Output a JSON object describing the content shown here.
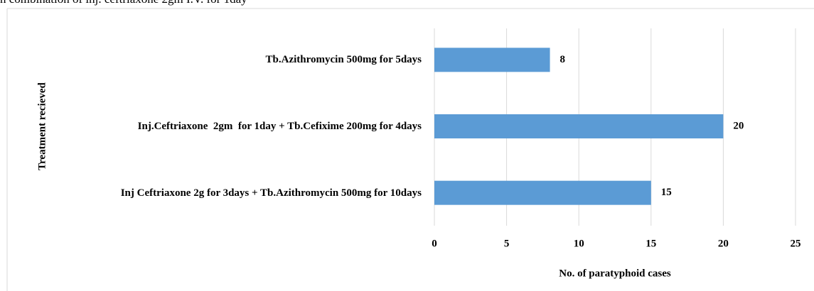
{
  "caption": "n combination of inj. ceftriaxone 2gm I.V. for 1day",
  "chart_data": {
    "type": "hbar",
    "categories": [
      "Tb.Azithromycin 500mg for 5days",
      "Inj.Ceftriaxone  2gm  for 1day + Tb.Cefixime 200mg for 4days",
      "Inj Ceftriaxone 2g for 3days + Tb.Azithromycin 500mg for 10days"
    ],
    "values": [
      8,
      20,
      15
    ],
    "color": "#5b9bd5",
    "xlim": [
      0,
      25
    ],
    "xticks": [
      0,
      5,
      10,
      15,
      20,
      25
    ],
    "grid": true,
    "x_label": "No. of paratyphoid cases",
    "y_label": "Treatment recieved"
  }
}
